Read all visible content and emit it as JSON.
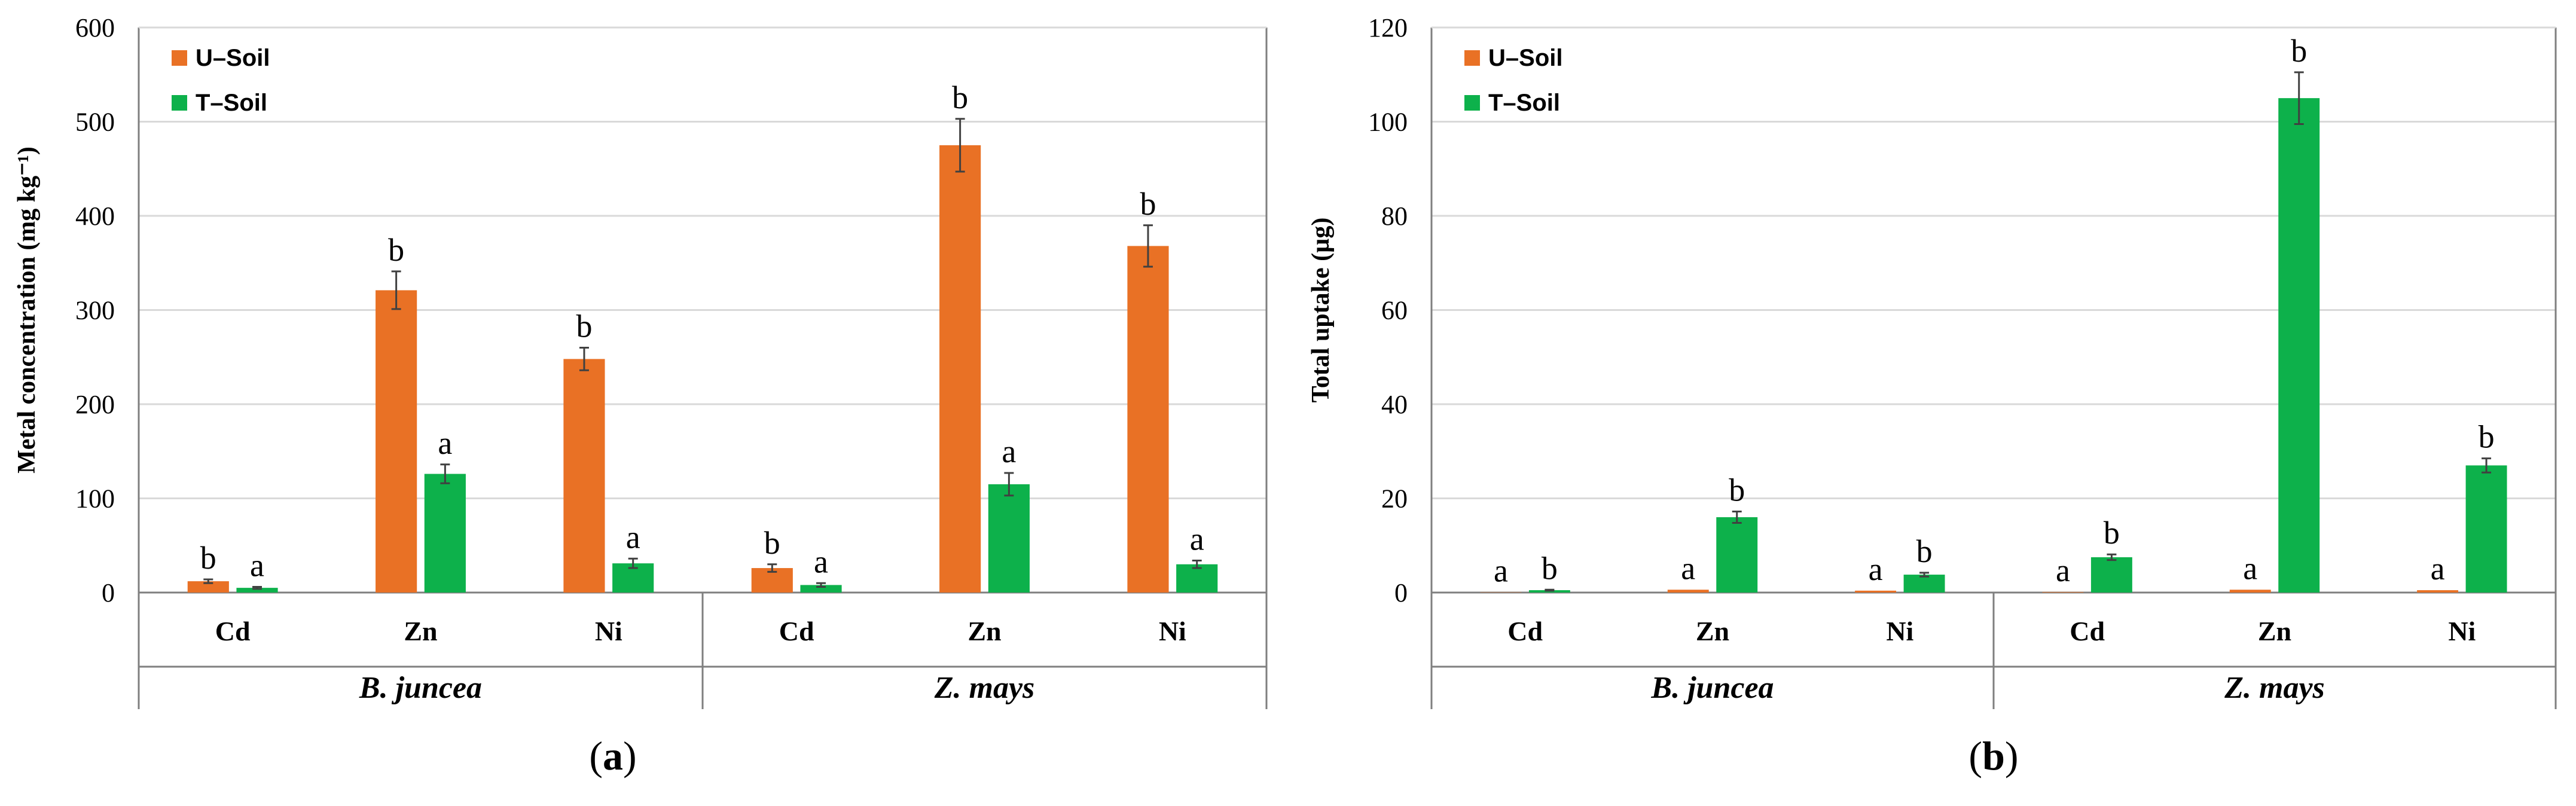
{
  "figure_labels": [
    {
      "open": "(",
      "letter": "a",
      "close": ")"
    },
    {
      "open": "(",
      "letter": "b",
      "close": ")"
    }
  ],
  "chart_data": [
    {
      "type": "bar",
      "title": "",
      "xlabel": "",
      "ylabel": "Metal concentration (mg kg⁻¹)",
      "ylim": [
        0,
        600
      ],
      "yticks": [
        0,
        100,
        200,
        300,
        400,
        500,
        600
      ],
      "grid": true,
      "legend_position": "top-left",
      "groups": [
        "B. juncea",
        "Z. mays"
      ],
      "categories": [
        "Cd",
        "Zn",
        "Ni",
        "Cd",
        "Zn",
        "Ni"
      ],
      "series": [
        {
          "name": "U–Soil",
          "color": "#E97125",
          "values": [
            12,
            321,
            248,
            26,
            475,
            368
          ],
          "errors": [
            2,
            20,
            12,
            4,
            28,
            22
          ],
          "letters": [
            "b",
            "b",
            "b",
            "b",
            "b",
            "b"
          ]
        },
        {
          "name": "T–Soil",
          "color": "#0DB14B",
          "values": [
            5,
            126,
            31,
            8,
            115,
            30
          ],
          "errors": [
            1,
            10,
            5,
            2,
            12,
            4
          ],
          "letters": [
            "a",
            "a",
            "a",
            "a",
            "a",
            "a"
          ]
        }
      ]
    },
    {
      "type": "bar",
      "title": "",
      "xlabel": "",
      "ylabel": "Total uptake (µg)",
      "ylim": [
        0,
        120
      ],
      "yticks": [
        0,
        20,
        40,
        60,
        80,
        100,
        120
      ],
      "grid": true,
      "legend_position": "top-left",
      "groups": [
        "B. juncea",
        "Z. mays"
      ],
      "categories": [
        "Cd",
        "Zn",
        "Ni",
        "Cd",
        "Zn",
        "Ni"
      ],
      "series": [
        {
          "name": "U–Soil",
          "color": "#E97125",
          "values": [
            0.05,
            0.6,
            0.4,
            0.1,
            0.6,
            0.5
          ],
          "errors": [
            0,
            0,
            0,
            0,
            0,
            0
          ],
          "letters": [
            "a",
            "a",
            "a",
            "a",
            "a",
            "a"
          ]
        },
        {
          "name": "T–Soil",
          "color": "#0DB14B",
          "values": [
            0.5,
            16,
            3.8,
            7.5,
            105,
            27
          ],
          "errors": [
            0.1,
            1.2,
            0.4,
            0.6,
            5.5,
            1.5
          ],
          "letters": [
            "b",
            "b",
            "b",
            "b",
            "b",
            "b"
          ]
        }
      ]
    }
  ]
}
